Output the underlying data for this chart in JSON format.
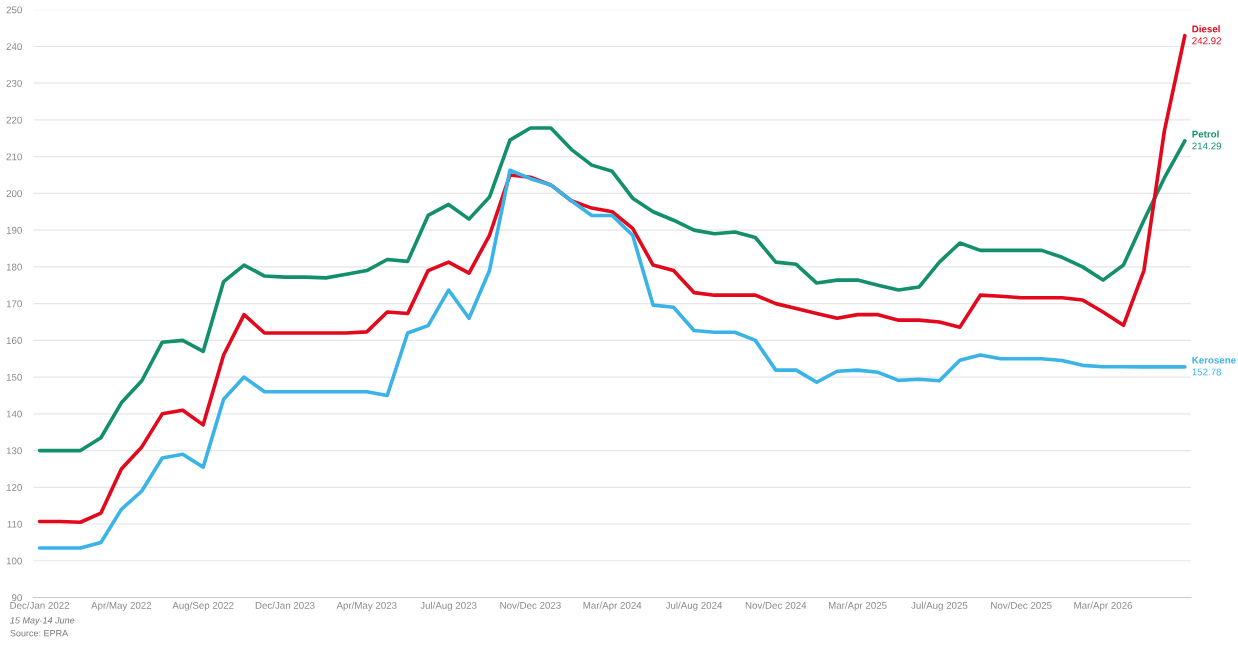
{
  "chart_data": {
    "type": "line",
    "categories": [
      "Dec/Jan 2022",
      null,
      null,
      null,
      "Apr/May 2022",
      null,
      null,
      null,
      "Aug/Sep 2022",
      null,
      null,
      null,
      "Dec/Jan 2023",
      null,
      null,
      null,
      "Apr/May 2023",
      null,
      null,
      null,
      "Jul/Aug 2023",
      null,
      null,
      null,
      "Nov/Dec 2023",
      null,
      null,
      null,
      "Mar/Apr 2024",
      null,
      null,
      null,
      "Jul/Aug 2024",
      null,
      null,
      null,
      "Nov/Dec 2024",
      null,
      null,
      null,
      "Mar/Apr 2025",
      null,
      null,
      null,
      "Jul/Aug 2025",
      null,
      null,
      null,
      "Nov/Dec 2025",
      null,
      null,
      null,
      "Mar/Apr 2026",
      null,
      null,
      null,
      null
    ],
    "series": [
      {
        "name": "Petrol",
        "color": "#13906b",
        "values": [
          130,
          130,
          130,
          133.5,
          143,
          149,
          159.5,
          160,
          157,
          176,
          180.5,
          177.5,
          177.2,
          177.2,
          177,
          178,
          179,
          182,
          181.5,
          194,
          197,
          193,
          199,
          214.5,
          217.8,
          217.8,
          212,
          207.7,
          206,
          198.7,
          195,
          192.7,
          190,
          189,
          189.5,
          188,
          181.3,
          180.7,
          175.6,
          176.4,
          176.4,
          175,
          173.7,
          174.5,
          181.3,
          186.5,
          184.5,
          184.5,
          184.5,
          184.5,
          182.6,
          180,
          176.4,
          180.5,
          192.7,
          204.2,
          214.29
        ],
        "value_labels": [
          null,
          null,
          null,
          null,
          null,
          null,
          null,
          null,
          null,
          null,
          null,
          null,
          null,
          null,
          null,
          null,
          null,
          null,
          null,
          null,
          null,
          null,
          null,
          null,
          null,
          null,
          null,
          null,
          null,
          null,
          null,
          null,
          null,
          null,
          null,
          null,
          null,
          null,
          null,
          null,
          null,
          null,
          null,
          null,
          null,
          null,
          null,
          null,
          null,
          null,
          null,
          null,
          null,
          null,
          null,
          null,
          "214.29"
        ]
      },
      {
        "name": "Diesel",
        "color": "#e3081b",
        "values": [
          110.7,
          110.7,
          110.5,
          113,
          125,
          131,
          140,
          141,
          137,
          156,
          167,
          162,
          162,
          162,
          162,
          162,
          162.3,
          167.7,
          167.3,
          179,
          181.3,
          178.3,
          188.6,
          205,
          204.4,
          202.3,
          198,
          196,
          195,
          190.5,
          180.5,
          179,
          173,
          172.3,
          172.3,
          172.3,
          170,
          168.7,
          167.3,
          166,
          167,
          167,
          165.5,
          165.5,
          165,
          163.6,
          172.3,
          172,
          171.6,
          171.6,
          171.6,
          171,
          167.7,
          164.1,
          179,
          217,
          242.92
        ],
        "value_labels": [
          null,
          null,
          null,
          null,
          null,
          null,
          null,
          null,
          null,
          null,
          null,
          null,
          null,
          null,
          null,
          null,
          null,
          null,
          null,
          null,
          null,
          null,
          null,
          null,
          null,
          null,
          null,
          null,
          null,
          null,
          null,
          null,
          null,
          null,
          null,
          null,
          null,
          null,
          null,
          null,
          null,
          null,
          null,
          null,
          null,
          null,
          null,
          null,
          null,
          null,
          null,
          null,
          null,
          null,
          null,
          null,
          "242.92"
        ]
      },
      {
        "name": "Kerosene",
        "color": "#3ab4e6",
        "values": [
          103.5,
          103.5,
          103.5,
          105,
          114,
          119,
          128,
          129,
          125.5,
          144,
          150,
          146,
          146,
          146,
          146,
          146,
          146,
          145,
          162,
          164,
          173.7,
          166,
          179,
          206.3,
          204,
          202.3,
          198,
          194,
          194,
          188.6,
          169.6,
          169,
          162.7,
          162.2,
          162.2,
          160,
          151.9,
          151.9,
          148.6,
          151.6,
          151.9,
          151.3,
          149.1,
          149.4,
          149,
          154.6,
          156,
          155,
          155,
          155,
          154.5,
          153.2,
          152.8,
          152.8,
          152.78,
          152.78,
          152.78
        ],
        "value_labels": [
          null,
          null,
          null,
          null,
          null,
          null,
          null,
          null,
          null,
          null,
          null,
          null,
          null,
          null,
          null,
          null,
          null,
          null,
          null,
          null,
          null,
          null,
          null,
          null,
          null,
          null,
          null,
          null,
          null,
          null,
          null,
          null,
          null,
          null,
          null,
          null,
          null,
          null,
          null,
          null,
          null,
          null,
          null,
          null,
          null,
          null,
          null,
          null,
          null,
          null,
          null,
          null,
          null,
          null,
          null,
          null,
          "152.78"
        ]
      }
    ],
    "ylim": [
      90,
      250
    ],
    "yticks": [
      90,
      100,
      110,
      120,
      130,
      140,
      150,
      160,
      170,
      180,
      190,
      200,
      210,
      220,
      230,
      240,
      250
    ],
    "grid": "y",
    "line_style": "solid",
    "annotations": [
      "15 May-14 June",
      "Source: EPRA"
    ]
  }
}
